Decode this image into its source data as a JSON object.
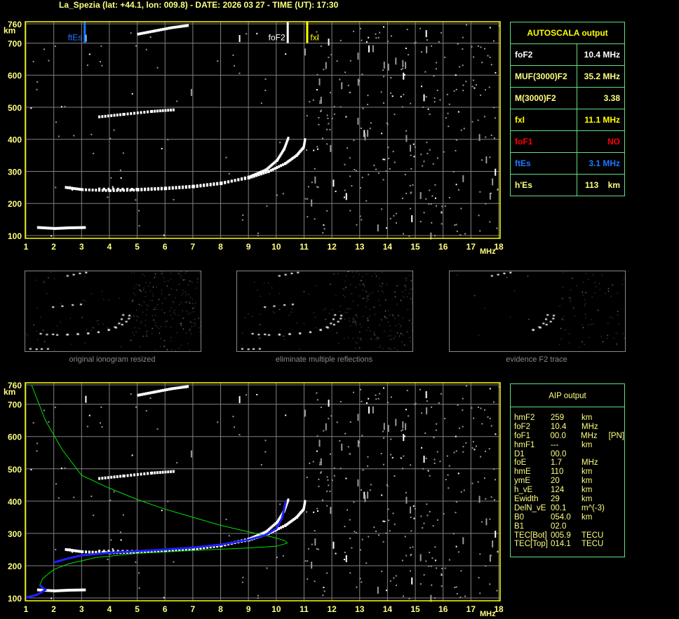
{
  "header": {
    "title": "La_Spezia (lat: +44.1, lon: 009.8) - DATE: 2026 03 27 - TIME (UT): 17:30"
  },
  "colors": {
    "axis": "#ffff00",
    "grid": "#808080",
    "panel_border": "#60e080",
    "ftEs": "#1e78ff",
    "foF1": "#ff0000",
    "profile": "#00e000",
    "true_height": "#2020ff"
  },
  "chart_data": {
    "type": "scatter",
    "xlabel": "MHz",
    "ylabel": "km",
    "xlim": [
      1,
      18
    ],
    "ylim": [
      100,
      760
    ],
    "x_ticks": [
      "1",
      "2",
      "3",
      "4",
      "5",
      "6",
      "7",
      "8",
      "9",
      "10",
      "11",
      "12",
      "13",
      "14",
      "15",
      "16",
      "17",
      "18"
    ],
    "y_ticks": [
      "100",
      "200",
      "300",
      "400",
      "500",
      "600",
      "700",
      "760"
    ],
    "markers": [
      {
        "label": "ftEs",
        "x": 3.1
      },
      {
        "label": "foF2",
        "x": 10.4
      },
      {
        "label": "fxI",
        "x": 11.1
      }
    ],
    "traces": {
      "F2_o": [
        [
          2.4,
          250
        ],
        [
          3,
          243
        ],
        [
          4,
          240
        ],
        [
          5,
          242
        ],
        [
          6,
          246
        ],
        [
          7,
          252
        ],
        [
          8,
          262
        ],
        [
          9,
          283
        ],
        [
          9.6,
          305
        ],
        [
          10,
          335
        ],
        [
          10.25,
          370
        ],
        [
          10.4,
          405
        ]
      ],
      "F2_x": [
        [
          3.6,
          245
        ],
        [
          5,
          244
        ],
        [
          6,
          248
        ],
        [
          7,
          254
        ],
        [
          8,
          264
        ],
        [
          9,
          280
        ],
        [
          9.7,
          300
        ],
        [
          10.3,
          325
        ],
        [
          10.7,
          350
        ],
        [
          10.95,
          375
        ],
        [
          11,
          400
        ]
      ],
      "F2_2hop": [
        [
          3.6,
          470
        ],
        [
          4.5,
          478
        ],
        [
          5.5,
          487
        ],
        [
          6.3,
          492
        ]
      ],
      "Es": [
        [
          1.4,
          125
        ],
        [
          2,
          122
        ],
        [
          2.5,
          124
        ],
        [
          3.1,
          125
        ]
      ],
      "Es_high": [
        [
          5,
          728
        ],
        [
          5.6,
          738
        ],
        [
          6.2,
          748
        ],
        [
          6.8,
          755
        ]
      ],
      "profile": [
        [
          1.2,
          760
        ],
        [
          1.7,
          650
        ],
        [
          2.3,
          560
        ],
        [
          3,
          480
        ],
        [
          4,
          440
        ],
        [
          5,
          405
        ],
        [
          6,
          375
        ],
        [
          7,
          350
        ],
        [
          8,
          325
        ],
        [
          9,
          305
        ],
        [
          9.8,
          290
        ],
        [
          10.3,
          278
        ],
        [
          10.4,
          270
        ],
        [
          10,
          260
        ],
        [
          9,
          255
        ],
        [
          7,
          247
        ],
        [
          5,
          238
        ],
        [
          3.5,
          225
        ],
        [
          2.5,
          205
        ],
        [
          2,
          188
        ],
        [
          1.6,
          160
        ],
        [
          1.5,
          140
        ],
        [
          1.7,
          125
        ],
        [
          1.4,
          112
        ],
        [
          1,
          103
        ]
      ],
      "true_height": [
        [
          1,
          100
        ],
        [
          1.4,
          110
        ],
        [
          1.7,
          125
        ],
        [
          1.5,
          140
        ],
        [
          null,
          null
        ],
        [
          2,
          210
        ],
        [
          2.5,
          222
        ],
        [
          3,
          232
        ],
        [
          4,
          240
        ],
        [
          5,
          245
        ],
        [
          6,
          250
        ],
        [
          7,
          256
        ],
        [
          8,
          265
        ],
        [
          9,
          280
        ],
        [
          9.6,
          295
        ],
        [
          10,
          315
        ],
        [
          10.2,
          345
        ],
        [
          10.35,
          400
        ]
      ]
    }
  },
  "autoscala": {
    "title": "AUTOSCALA output",
    "rows": [
      {
        "label": "foF2",
        "value": "10.4 MHz",
        "color": "#ffffff"
      },
      {
        "label": "MUF(3000)F2",
        "value": "35.2 MHz",
        "color": "#ffff80"
      },
      {
        "label": "M(3000)F2",
        "value": "3.38",
        "color": "#ffff80"
      },
      {
        "label": "fxI",
        "value": "11.1 MHz",
        "color": "#ffff00"
      },
      {
        "label": "foF1",
        "value": "NO",
        "color": "#ff0000"
      },
      {
        "label": "ftEs",
        "value": "3.1 MHz",
        "color": "#1e78ff"
      },
      {
        "label": "h'Es",
        "value": "113    km",
        "color": "#ffff80"
      }
    ]
  },
  "thumbnails": [
    {
      "caption": "original ionogram resized"
    },
    {
      "caption": "eliminate multiple reflections"
    },
    {
      "caption": "evidence F2 trace"
    }
  ],
  "aip": {
    "title": "AIP output",
    "rows": [
      [
        "hmF2",
        "259",
        "km",
        ""
      ],
      [
        "foF2",
        "10.4",
        "MHz",
        ""
      ],
      [
        "foF1",
        "00.0",
        "MHz",
        "[PN]"
      ],
      [
        "hmF1",
        "---",
        "km",
        ""
      ],
      [
        "D1",
        "00.0",
        "",
        ""
      ],
      [
        "foE",
        "1.7",
        "MHz",
        ""
      ],
      [
        "hmE",
        "110",
        "km",
        ""
      ],
      [
        "ymE",
        "20",
        "km",
        ""
      ],
      [
        "h_vE",
        "124",
        "km",
        ""
      ],
      [
        "Ewidth",
        "29",
        "km",
        ""
      ],
      [
        "DelN_vE",
        "00.1",
        "m^(-3)",
        ""
      ],
      [
        "B0",
        "054.0",
        "km",
        ""
      ],
      [
        "B1",
        "02.0",
        "",
        ""
      ],
      [
        "TEC[Bot]",
        "005.9",
        "TECU",
        ""
      ],
      [
        "TEC[Top]",
        "014.1",
        "TECU",
        ""
      ]
    ]
  }
}
